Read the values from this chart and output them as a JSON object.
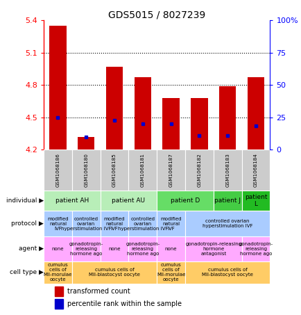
{
  "title": "GDS5015 / 8027239",
  "samples": [
    "GSM1068186",
    "GSM1068180",
    "GSM1068185",
    "GSM1068181",
    "GSM1068187",
    "GSM1068182",
    "GSM1068183",
    "GSM1068184"
  ],
  "red_values": [
    5.35,
    4.32,
    4.97,
    4.87,
    4.68,
    4.68,
    4.79,
    4.87
  ],
  "blue_values": [
    4.5,
    4.32,
    4.47,
    4.44,
    4.44,
    4.33,
    4.33,
    4.42
  ],
  "ylim": [
    4.2,
    5.4
  ],
  "y_left_ticks": [
    4.2,
    4.5,
    4.8,
    5.1,
    5.4
  ],
  "y_right_tick_positions": [
    4.2,
    4.5,
    4.8,
    5.1,
    5.4
  ],
  "y_right_tick_labels": [
    "0",
    "25",
    "50",
    "75",
    "100%"
  ],
  "dotted_lines": [
    4.5,
    4.8,
    5.1
  ],
  "individual_spans": [
    {
      "label": "patient AH",
      "start": 0,
      "end": 2,
      "color": "#b8eeb8"
    },
    {
      "label": "patient AU",
      "start": 2,
      "end": 4,
      "color": "#b8eeb8"
    },
    {
      "label": "patient D",
      "start": 4,
      "end": 6,
      "color": "#66dd66"
    },
    {
      "label": "patient J",
      "start": 6,
      "end": 7,
      "color": "#44cc44"
    },
    {
      "label": "patient\nL",
      "start": 7,
      "end": 8,
      "color": "#22bb22"
    }
  ],
  "protocol_spans": [
    {
      "label": "modified\nnatural\nIVF",
      "start": 0,
      "end": 1,
      "color": "#aaccff"
    },
    {
      "label": "controlled\novarian\nhyperstimulation IVF",
      "start": 1,
      "end": 2,
      "color": "#aaccff"
    },
    {
      "label": "modified\nnatural\nIVF",
      "start": 2,
      "end": 3,
      "color": "#aaccff"
    },
    {
      "label": "controlled\novarian\nhyperstimulation IVF",
      "start": 3,
      "end": 4,
      "color": "#aaccff"
    },
    {
      "label": "modified\nnatural\nIVF",
      "start": 4,
      "end": 5,
      "color": "#aaccff"
    },
    {
      "label": "controlled ovarian\nhyperstimulation IVF",
      "start": 5,
      "end": 8,
      "color": "#aaccff"
    }
  ],
  "agent_spans": [
    {
      "label": "none",
      "start": 0,
      "end": 1,
      "color": "#ffaaff"
    },
    {
      "label": "gonadotropin-\nreleasing\nhormone ago",
      "start": 1,
      "end": 2,
      "color": "#ffaaff"
    },
    {
      "label": "none",
      "start": 2,
      "end": 3,
      "color": "#ffaaff"
    },
    {
      "label": "gonadotropin-\nreleasing\nhormone ago",
      "start": 3,
      "end": 4,
      "color": "#ffaaff"
    },
    {
      "label": "none",
      "start": 4,
      "end": 5,
      "color": "#ffaaff"
    },
    {
      "label": "gonadotropin-releasing\nhormone\nantagonist",
      "start": 5,
      "end": 7,
      "color": "#ffaaff"
    },
    {
      "label": "gonadotropin-\nreleasing\nhormone ago",
      "start": 7,
      "end": 8,
      "color": "#ffaaff"
    }
  ],
  "celltype_spans": [
    {
      "label": "cumulus\ncells of\nMII-morulae\noocyte",
      "start": 0,
      "end": 1,
      "color": "#ffcc66"
    },
    {
      "label": "cumulus cells of\nMII-blastocyst oocyte",
      "start": 1,
      "end": 4,
      "color": "#ffcc66"
    },
    {
      "label": "cumulus\ncells of\nMII-morulae\noocyte",
      "start": 4,
      "end": 5,
      "color": "#ffcc66"
    },
    {
      "label": "cumulus cells of\nMII-blastocyst oocyte",
      "start": 5,
      "end": 8,
      "color": "#ffcc66"
    }
  ],
  "row_labels": [
    "individual",
    "protocol",
    "agent",
    "cell type"
  ],
  "legend_red": "transformed count",
  "legend_blue": "percentile rank within the sample",
  "bar_color": "#cc0000",
  "dot_color": "#0000cc",
  "sample_bg": "#cccccc"
}
